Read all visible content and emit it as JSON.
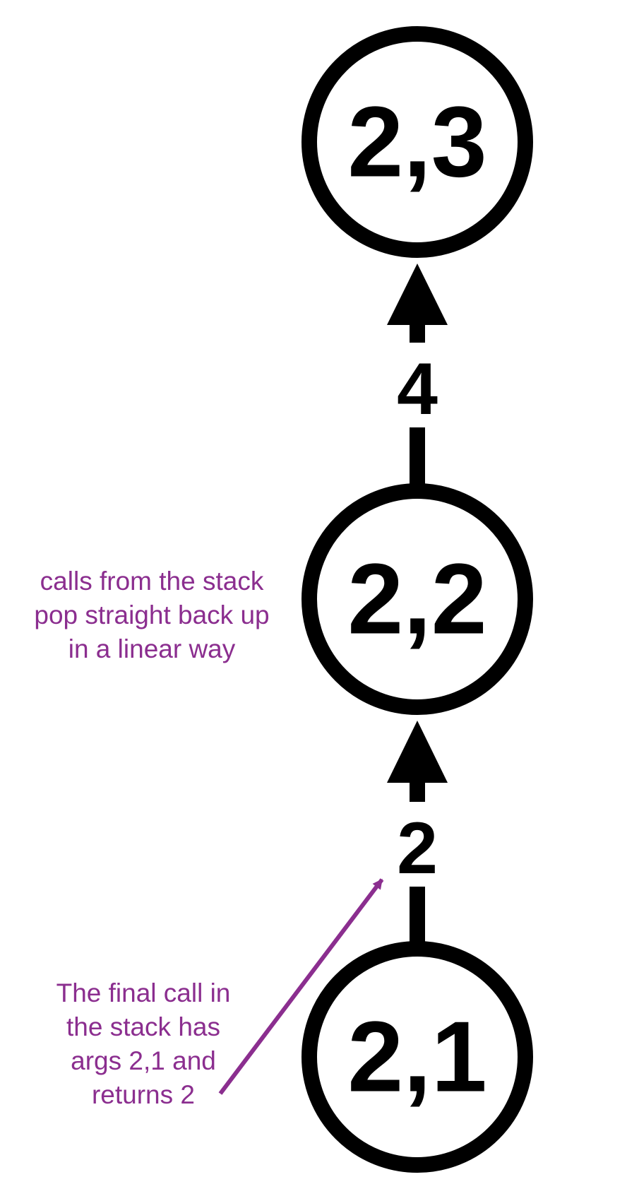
{
  "colors": {
    "node_stroke": "#000000",
    "node_text": "#000000",
    "edge": "#000000",
    "annotation": "#8b2e8f",
    "background": "#ffffff"
  },
  "nodes": {
    "top": {
      "label": "2,3"
    },
    "middle": {
      "label": "2,2"
    },
    "bottom": {
      "label": "2,1"
    }
  },
  "edges": {
    "middle_to_top": {
      "label": "4"
    },
    "bottom_to_middle": {
      "label": "2"
    }
  },
  "annotations": {
    "stack_note": {
      "lines": [
        "calls from the stack",
        "pop straight back up",
        "in a linear way"
      ]
    },
    "final_call_note": {
      "lines": [
        "The final call in",
        "the stack has",
        "args 2,1 and",
        "returns 2"
      ]
    }
  }
}
